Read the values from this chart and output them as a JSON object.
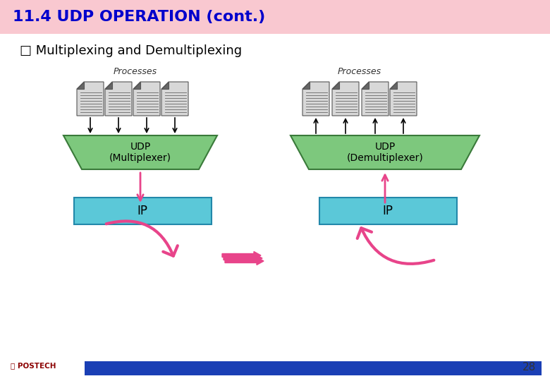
{
  "title": "11.4 UDP OPERATION (cont.)",
  "title_bg": "#f9c8d0",
  "title_color": "#0000cc",
  "subtitle": "□ Multiplexing and Demultiplexing",
  "subtitle_color": "#000000",
  "bg_color": "#ffffff",
  "green_color": "#7dc87d",
  "blue_color": "#5bc8d8",
  "pink_color": "#e8448a",
  "dark_green": "#3a7a3a",
  "footer_bar_color": "#1a3fb5",
  "page_number": "28",
  "left_udp_label": "UDP\n(Multiplexer)",
  "right_udp_label": "UDP\n(Demultiplexer)",
  "left_ip_label": "IP",
  "right_ip_label": "IP",
  "left_processes_label": "Processes",
  "right_processes_label": "Processes"
}
